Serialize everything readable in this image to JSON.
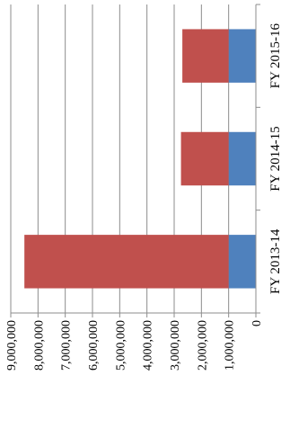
{
  "chart_data": {
    "type": "bar",
    "orientation": "horizontal-stacked",
    "rotation": "rotated 90° clockwise",
    "categories": [
      "FY 2013-14",
      "FY 2014-15",
      "FY 2015-16"
    ],
    "series": [
      {
        "values": [
          1000000,
          1000000,
          1000000
        ],
        "color": "#4f81bd"
      },
      {
        "values": [
          7500000,
          1750000,
          1700000
        ],
        "color": "#c0504d"
      }
    ],
    "value_ticks": [
      "0",
      "1,000,000",
      "2,000,000",
      "3,000,000",
      "4,000,000",
      "5,000,000",
      "6,000,000",
      "7,000,000",
      "8,000,000",
      "9,000,000"
    ],
    "vlim": [
      0,
      9000000
    ],
    "grid": true,
    "legend": "none",
    "title": "",
    "xlabel": "",
    "ylabel": ""
  }
}
